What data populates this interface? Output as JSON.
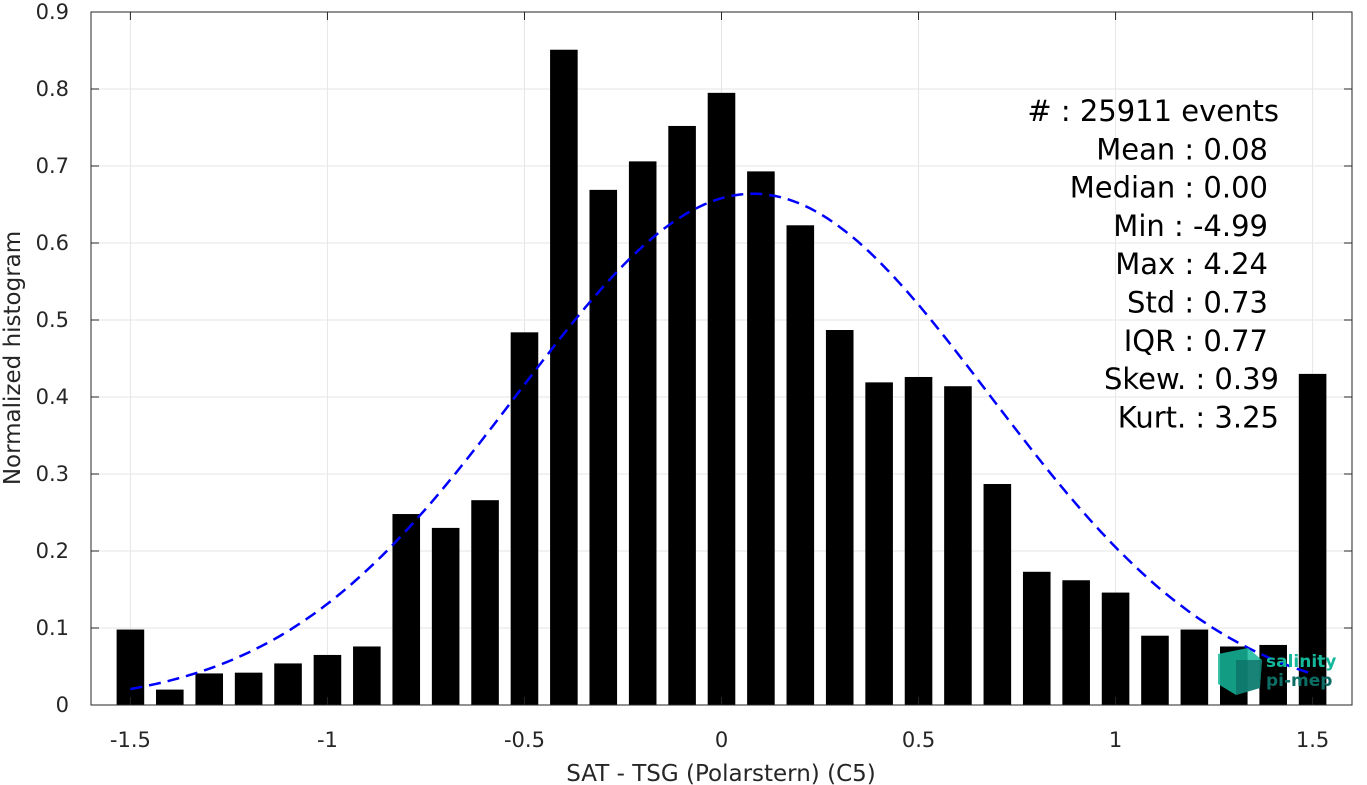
{
  "chart_data": {
    "type": "bar",
    "xlabel": "SAT - TSG (Polarstern) (C5)",
    "ylabel": "Normalized histogram",
    "xlim": [
      -1.6,
      1.6
    ],
    "ylim": [
      0,
      0.9
    ],
    "grid": true,
    "x_ticks": [
      "-1.5",
      "-1",
      "-0.5",
      "0",
      "0.5",
      "1",
      "1.5"
    ],
    "y_ticks": [
      "0",
      "0.1",
      "0.2",
      "0.3",
      "0.4",
      "0.5",
      "0.6",
      "0.7",
      "0.8",
      "0.9"
    ],
    "series": [
      {
        "type": "bar",
        "color": "#000000",
        "x": [
          -1.5,
          -1.4,
          -1.3,
          -1.2,
          -1.1,
          -1.0,
          -0.9,
          -0.8,
          -0.7,
          -0.6,
          -0.5,
          -0.4,
          -0.3,
          -0.2,
          -0.1,
          0.0,
          0.1,
          0.2,
          0.3,
          0.4,
          0.5,
          0.6,
          0.7,
          0.8,
          0.9,
          1.0,
          1.1,
          1.2,
          1.3,
          1.4,
          1.5
        ],
        "values": [
          0.098,
          0.02,
          0.041,
          0.042,
          0.054,
          0.065,
          0.076,
          0.248,
          0.23,
          0.266,
          0.484,
          0.851,
          0.669,
          0.706,
          0.752,
          0.795,
          0.693,
          0.623,
          0.487,
          0.419,
          0.426,
          0.414,
          0.287,
          0.173,
          0.162,
          0.146,
          0.09,
          0.098,
          0.076,
          0.078,
          0.43
        ]
      },
      {
        "type": "line",
        "style": "dashed",
        "color": "#0000ff",
        "mean": 0.08,
        "std": 0.6,
        "peak": 0.664,
        "x_range": [
          -1.5,
          1.5
        ]
      }
    ],
    "stats": [
      "#  : 25911 events",
      "Mean : 0.08",
      "Median : 0.00",
      "Min : -4.99",
      "Max : 4.24",
      "Std : 0.73",
      "IQR : 0.77",
      "Skew. : 0.39",
      "Kurt. : 3.25"
    ]
  },
  "logo": {
    "line1": "salinity",
    "line2": "pi-mep",
    "colors": [
      "#15b79a",
      "#0d6e66"
    ]
  }
}
